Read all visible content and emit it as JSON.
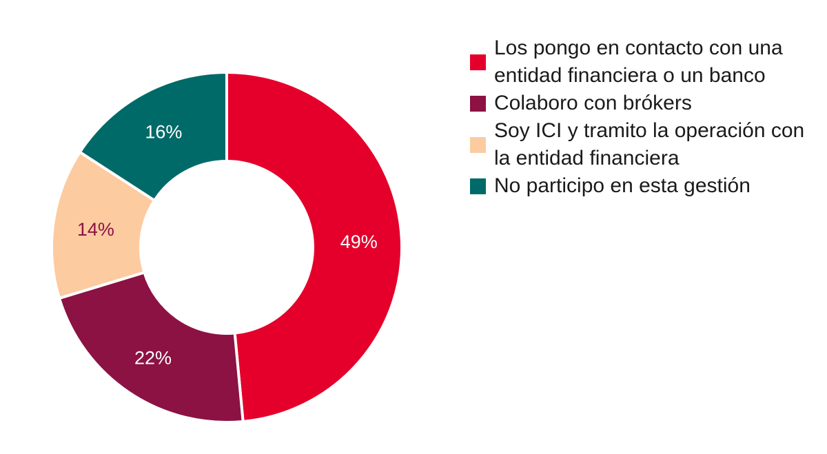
{
  "chart_data": {
    "type": "pie",
    "variant": "donut",
    "title": "",
    "start_angle": "top, clockwise",
    "legend_position": "right",
    "slices": [
      {
        "label": "Los pongo en contacto con una entidad financiera o un banco",
        "value": 49,
        "data_label": "49%",
        "color": "#E4002B",
        "label_color": "#ffffff"
      },
      {
        "label": "Colaboro con brókers",
        "value": 22,
        "data_label": "22%",
        "color": "#8C1244",
        "label_color": "#ffffff"
      },
      {
        "label": "Soy ICI y tramito la operación con la entidad financiera",
        "value": 14,
        "data_label": "14%",
        "color": "#FDCBA0",
        "label_color": "#8C1244"
      },
      {
        "label": "No participo en esta gestión",
        "value": 16,
        "data_label": "16%",
        "color": "#006A68",
        "label_color": "#ffffff"
      }
    ]
  }
}
